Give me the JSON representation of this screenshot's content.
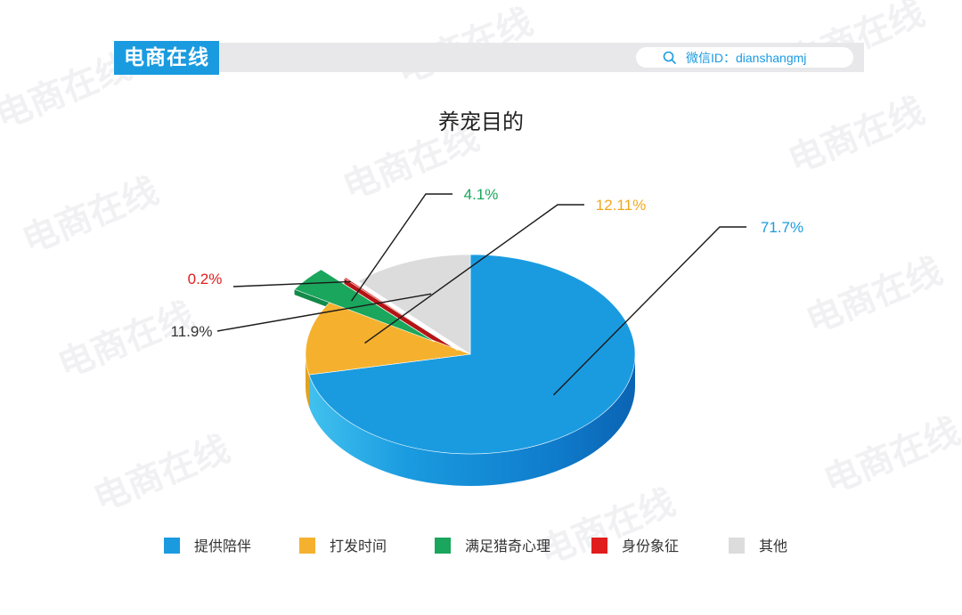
{
  "header": {
    "brand": "电商在线",
    "wechat_id": "微信ID：dianshangmj"
  },
  "colors": {
    "provide": "#1a9be0",
    "kill_time": "#f5b12e",
    "curiosity": "#1aa65c",
    "status": "#e11e1e",
    "other": "#dcdcdc",
    "label_provide": "#1a9be0",
    "label_kill_time": "#f0a81e",
    "label_curiosity": "#1aa65c",
    "label_status": "#e11e1e",
    "label_other": "#333333"
  },
  "chart_data": {
    "type": "pie",
    "title": "养宠目的",
    "unit": "%",
    "legend_position": "bottom",
    "slices": [
      {
        "name": "提供陪伴",
        "value": 71.7,
        "label": "71.7%"
      },
      {
        "name": "打发时间",
        "value": 12.11,
        "label": "12.11%"
      },
      {
        "name": "满足猎奇心理",
        "value": 4.1,
        "label": "4.1%"
      },
      {
        "name": "身份象征",
        "value": 0.2,
        "label": "0.2%"
      },
      {
        "name": "其他",
        "value": 11.9,
        "label": "11.9%"
      }
    ]
  }
}
